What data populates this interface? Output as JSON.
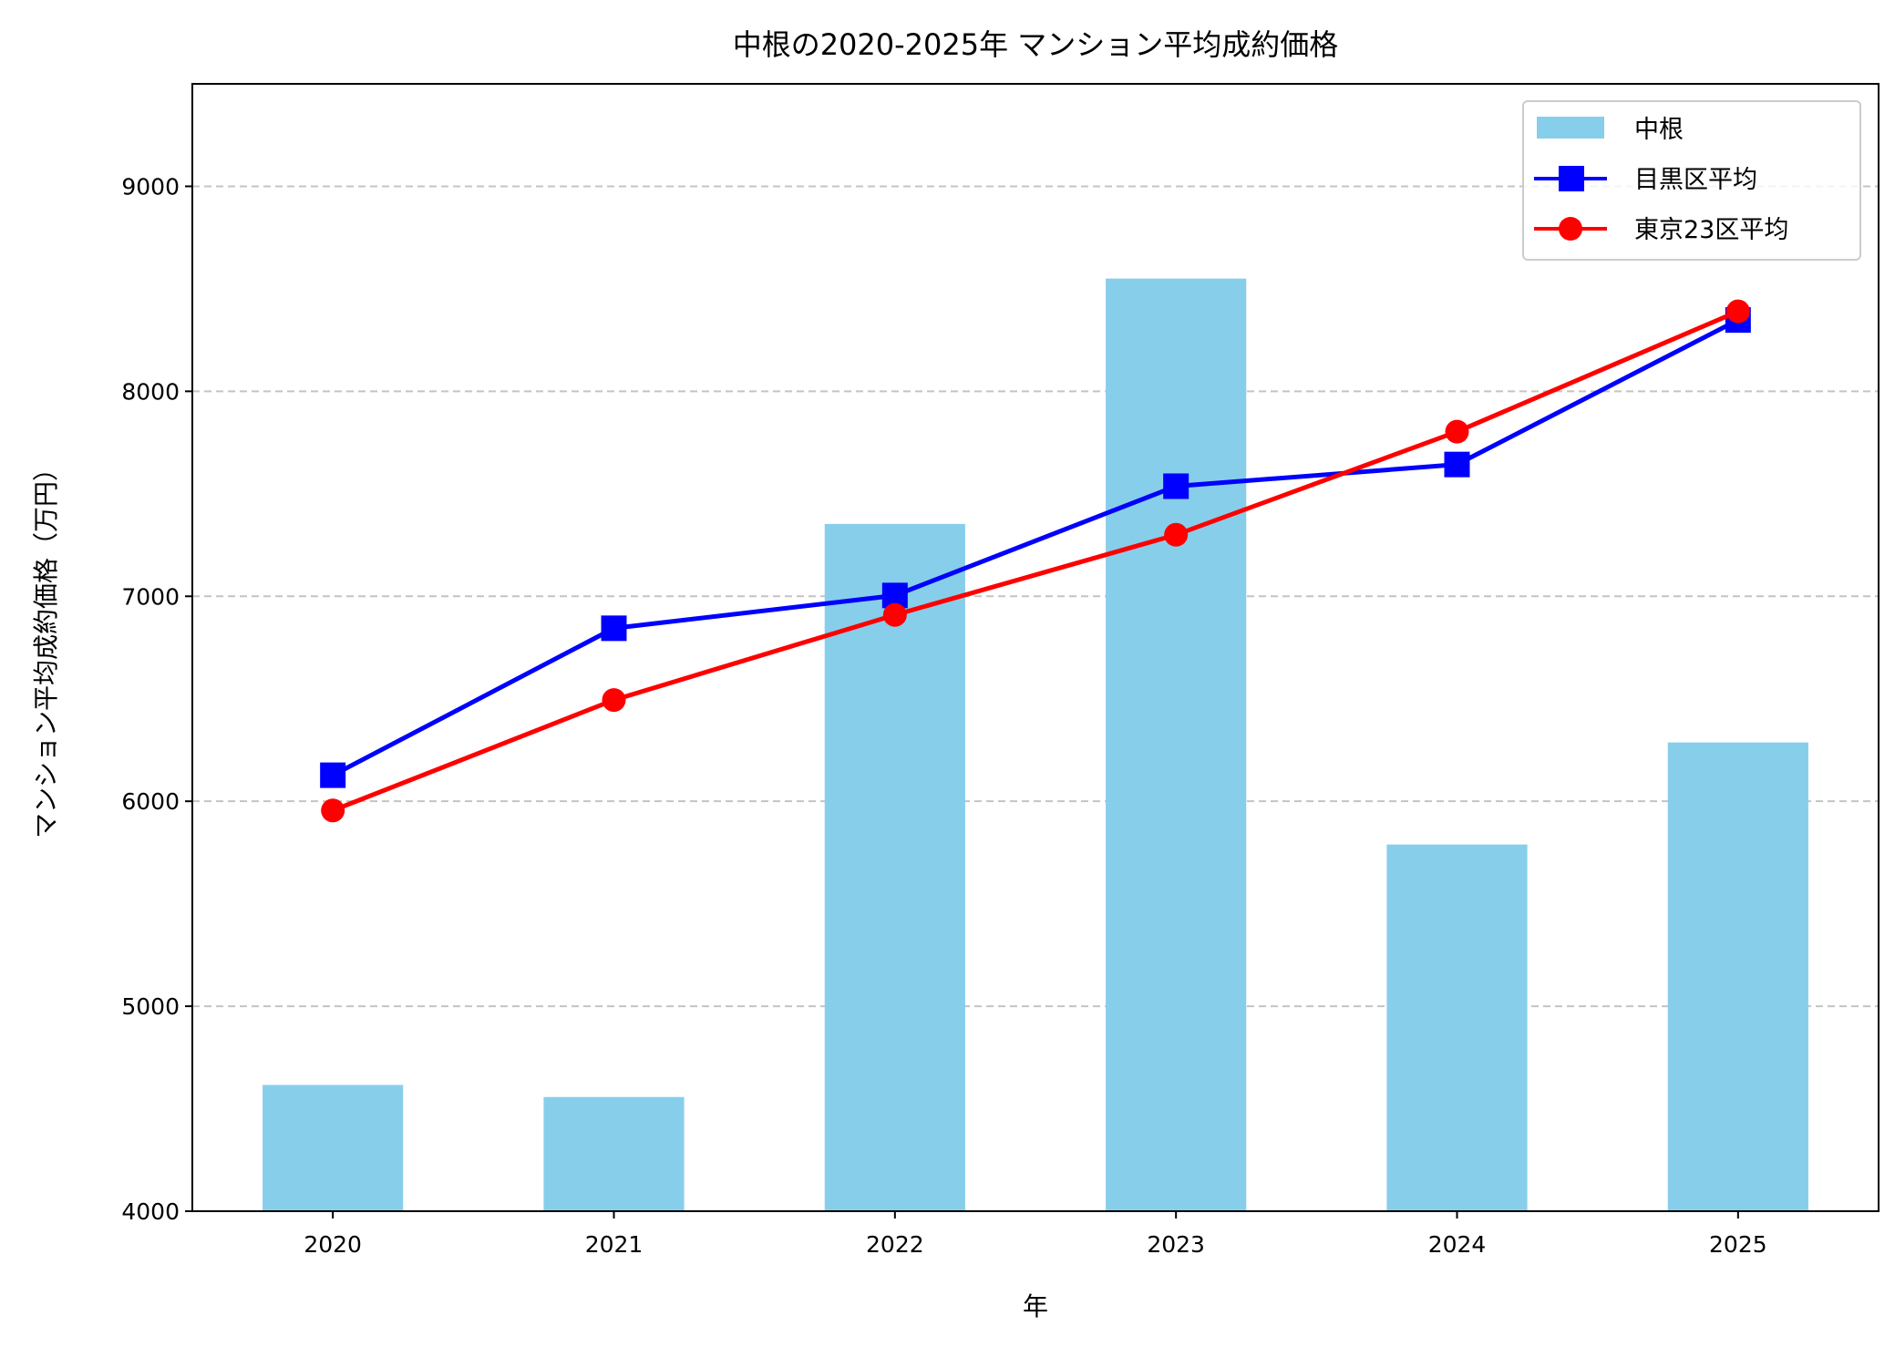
{
  "chart_data": {
    "type": "bar+line",
    "title": "中根の2020-2025年 マンション平均成約価格",
    "xlabel": "年",
    "ylabel": "マンション平均成約価格（万円）",
    "categories": [
      "2020",
      "2021",
      "2022",
      "2023",
      "2024",
      "2025"
    ],
    "ylim": [
      4000,
      9500
    ],
    "yticks": [
      4000,
      5000,
      6000,
      7000,
      8000,
      9000
    ],
    "grid": "y-dashed",
    "legend_position": "top-right",
    "series": [
      {
        "name": "中根",
        "kind": "bar",
        "color": "#87ceeb",
        "values": [
          4616,
          4557,
          7353,
          8550,
          5789,
          6287
        ]
      },
      {
        "name": "目黒区平均",
        "kind": "line",
        "marker": "square",
        "color": "#0000ff",
        "values": [
          6127,
          6844,
          7004,
          7537,
          7643,
          8348
        ]
      },
      {
        "name": "東京23区平均",
        "kind": "line",
        "marker": "circle",
        "color": "#ff0000",
        "values": [
          5955,
          6494,
          6909,
          7300,
          7803,
          8390
        ]
      }
    ]
  }
}
